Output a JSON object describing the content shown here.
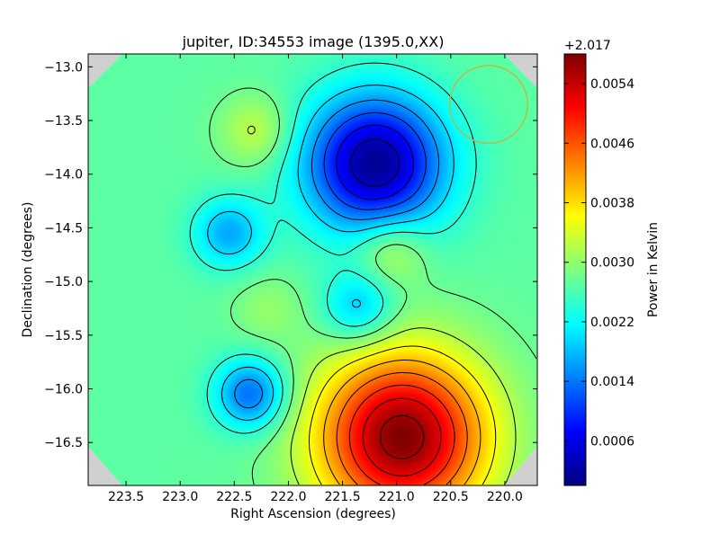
{
  "chart_data": {
    "type": "heatmap",
    "title": "jupiter, ID:34553 image (1395.0,XX)",
    "xlabel": "Right Ascension (degrees)",
    "ylabel": "Declination (degrees)",
    "xlim": [
      223.85,
      219.7
    ],
    "ylim": [
      -16.9,
      -12.88
    ],
    "x_ticks": [
      223.5,
      223.0,
      222.5,
      222.0,
      221.5,
      221.0,
      220.5,
      220.0
    ],
    "x_tick_labels": [
      "223.5",
      "223.0",
      "222.5",
      "222.0",
      "221.5",
      "221.0",
      "220.5",
      "220.0"
    ],
    "y_ticks": [
      -13.0,
      -13.5,
      -14.0,
      -14.5,
      -15.0,
      -15.5,
      -16.0,
      -16.5
    ],
    "y_tick_labels": [
      "−13.0",
      "−13.5",
      "−14.0",
      "−14.5",
      "−15.0",
      "−15.5",
      "−16.0",
      "−16.5"
    ],
    "colormap": "jet",
    "colorbar": {
      "label": "Power in Kelvin",
      "offset_label": "+2.017",
      "range": [
        0.0,
        0.0058
      ],
      "ticks": [
        0.0006,
        0.0014,
        0.0022,
        0.003,
        0.0038,
        0.0046,
        0.0054
      ],
      "tick_labels": [
        "0.0006",
        "0.0014",
        "0.0022",
        "0.0030",
        "0.0038",
        "0.0046",
        "0.0054"
      ]
    },
    "features": [
      {
        "kind": "minimum",
        "ra": 221.2,
        "dec": -13.9,
        "value": 0.0001
      },
      {
        "kind": "maximum",
        "ra": 220.95,
        "dec": -16.45,
        "value": 0.0058
      },
      {
        "kind": "local-max",
        "ra": 221.05,
        "dec": -14.7,
        "value": 0.0034
      },
      {
        "kind": "local-max",
        "ra": 222.3,
        "dec": -13.6,
        "value": 0.0033
      },
      {
        "kind": "local-max",
        "ra": 222.2,
        "dec": -15.25,
        "value": 0.003
      },
      {
        "kind": "local-min",
        "ra": 222.55,
        "dec": -14.55,
        "value": 0.0017
      },
      {
        "kind": "local-min",
        "ra": 222.35,
        "dec": -16.05,
        "value": 0.0013
      },
      {
        "kind": "local-min",
        "ra": 221.35,
        "dec": -15.25,
        "value": 0.0018
      }
    ],
    "beam_circle": {
      "ra": 220.15,
      "dec": -13.35,
      "radius_deg": 0.36,
      "color": "#c8b040"
    },
    "contour_color": "#000000",
    "masked_corner_color": "#c8c8c8"
  }
}
